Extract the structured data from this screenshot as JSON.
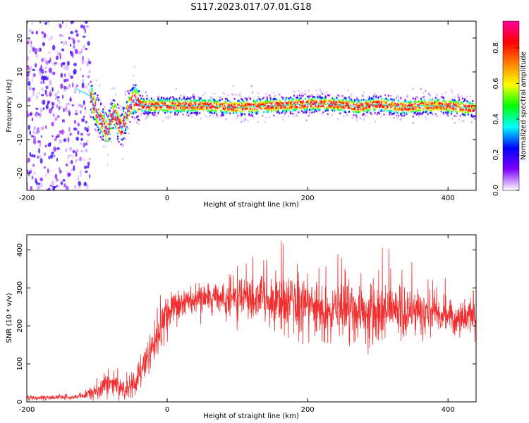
{
  "figure_title": "S117.2023.017.07.01.G18",
  "colors": {
    "snr_line": "#f03030",
    "axis": "#000000",
    "background": "#ffffff"
  },
  "chart_data": [
    {
      "type": "heatmap",
      "title": "",
      "xlabel": "Height of straight line (km)",
      "ylabel": "Frequency (Hz)",
      "xlim": [
        -200,
        440
      ],
      "ylim": [
        -25,
        25
      ],
      "x_ticks": [
        -200,
        0,
        200,
        400
      ],
      "x_tick_labels": [
        "-200",
        "0",
        "200",
        "400"
      ],
      "y_ticks": [
        -20,
        -10,
        0,
        10,
        20
      ],
      "y_tick_labels": [
        "-20",
        "-10",
        "0",
        "10",
        "20"
      ],
      "colorbar": {
        "label": "Normalized spectral amplitude",
        "range": [
          0,
          0.95
        ],
        "ticks": [
          0.0,
          0.2,
          0.4,
          0.6,
          0.8
        ],
        "tick_labels": [
          "0.0",
          "0.2",
          "0.4",
          "0.6",
          "0.8"
        ],
        "colormap": [
          "#ffffff",
          "#8000ff",
          "#0000ff",
          "#00ffff",
          "#00ff00",
          "#ffff00",
          "#ff8000",
          "#ff0000",
          "#ff00a0"
        ]
      },
      "ridge": {
        "description": "peak frequency trace",
        "x": [
          -130,
          -120,
          -110,
          -100,
          -95,
          -90,
          -85,
          -80,
          -75,
          -70,
          -65,
          -60,
          -55,
          -50,
          -45,
          -40,
          -30,
          0,
          50,
          100,
          150,
          200,
          230,
          260,
          270,
          300,
          320,
          340,
          360,
          400,
          440
        ],
        "y": [
          5,
          4,
          3,
          -2,
          -4,
          -6,
          -8,
          -4,
          -2,
          -5,
          -7,
          -4,
          -1,
          1,
          2,
          0.5,
          0,
          0,
          0,
          -0.5,
          0,
          0.5,
          0.5,
          0,
          -0.5,
          0.5,
          0,
          -0.5,
          0,
          0,
          -1
        ]
      }
    },
    {
      "type": "line",
      "title": "",
      "xlabel": "Height of straight line (km)",
      "ylabel": "SNR (10 * v/v)",
      "xlim": [
        -200,
        440
      ],
      "ylim": [
        0,
        440
      ],
      "x_ticks": [
        -200,
        0,
        200,
        400
      ],
      "x_tick_labels": [
        "-200",
        "0",
        "200",
        "400"
      ],
      "y_ticks": [
        0,
        100,
        200,
        300,
        400
      ],
      "y_tick_labels": [
        "0",
        "100",
        "200",
        "300",
        "400"
      ],
      "series": [
        {
          "name": "SNR",
          "x": [
            -200,
            -150,
            -120,
            -100,
            -90,
            -80,
            -70,
            -60,
            -50,
            -40,
            -30,
            -20,
            -10,
            0,
            10,
            20,
            30,
            50,
            100,
            150,
            200,
            250,
            300,
            350,
            400,
            440
          ],
          "mean": [
            10,
            12,
            15,
            30,
            45,
            50,
            40,
            30,
            40,
            70,
            110,
            150,
            190,
            220,
            245,
            260,
            265,
            270,
            270,
            270,
            250,
            240,
            235,
            235,
            225,
            220
          ],
          "spread": [
            6,
            6,
            8,
            18,
            25,
            28,
            25,
            25,
            30,
            40,
            50,
            55,
            55,
            50,
            45,
            40,
            35,
            35,
            45,
            60,
            75,
            80,
            70,
            55,
            40,
            40
          ],
          "peak_max": 435
        }
      ]
    }
  ]
}
